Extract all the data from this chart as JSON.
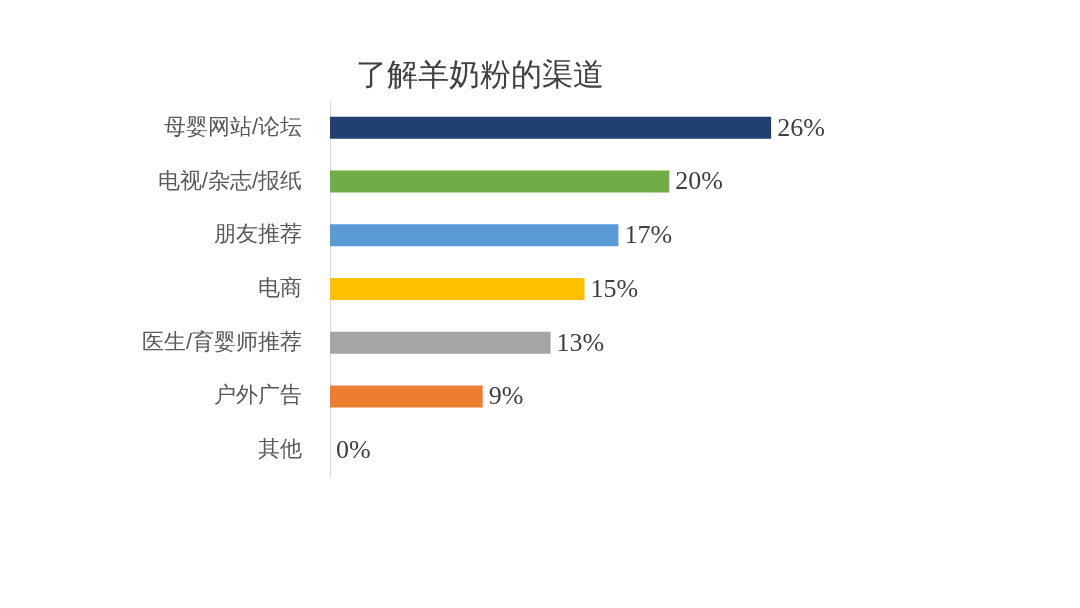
{
  "chart_data": {
    "type": "bar",
    "orientation": "horizontal",
    "title": "了解羊奶粉的渠道",
    "categories": [
      "母婴网站/论坛",
      "电视/杂志/报纸",
      "朋友推荐",
      "电商",
      "医生/育婴师推荐",
      "户外广告",
      "其他"
    ],
    "values": [
      26,
      20,
      17,
      15,
      13,
      9,
      0
    ],
    "colors": [
      "#203f73",
      "#70ad47",
      "#5b9bd5",
      "#ffc000",
      "#a5a5a5",
      "#ed7d31",
      "#d9d9d9"
    ],
    "value_labels": [
      "26%",
      "20%",
      "17%",
      "15%",
      "13%",
      "9%",
      "0%"
    ]
  }
}
